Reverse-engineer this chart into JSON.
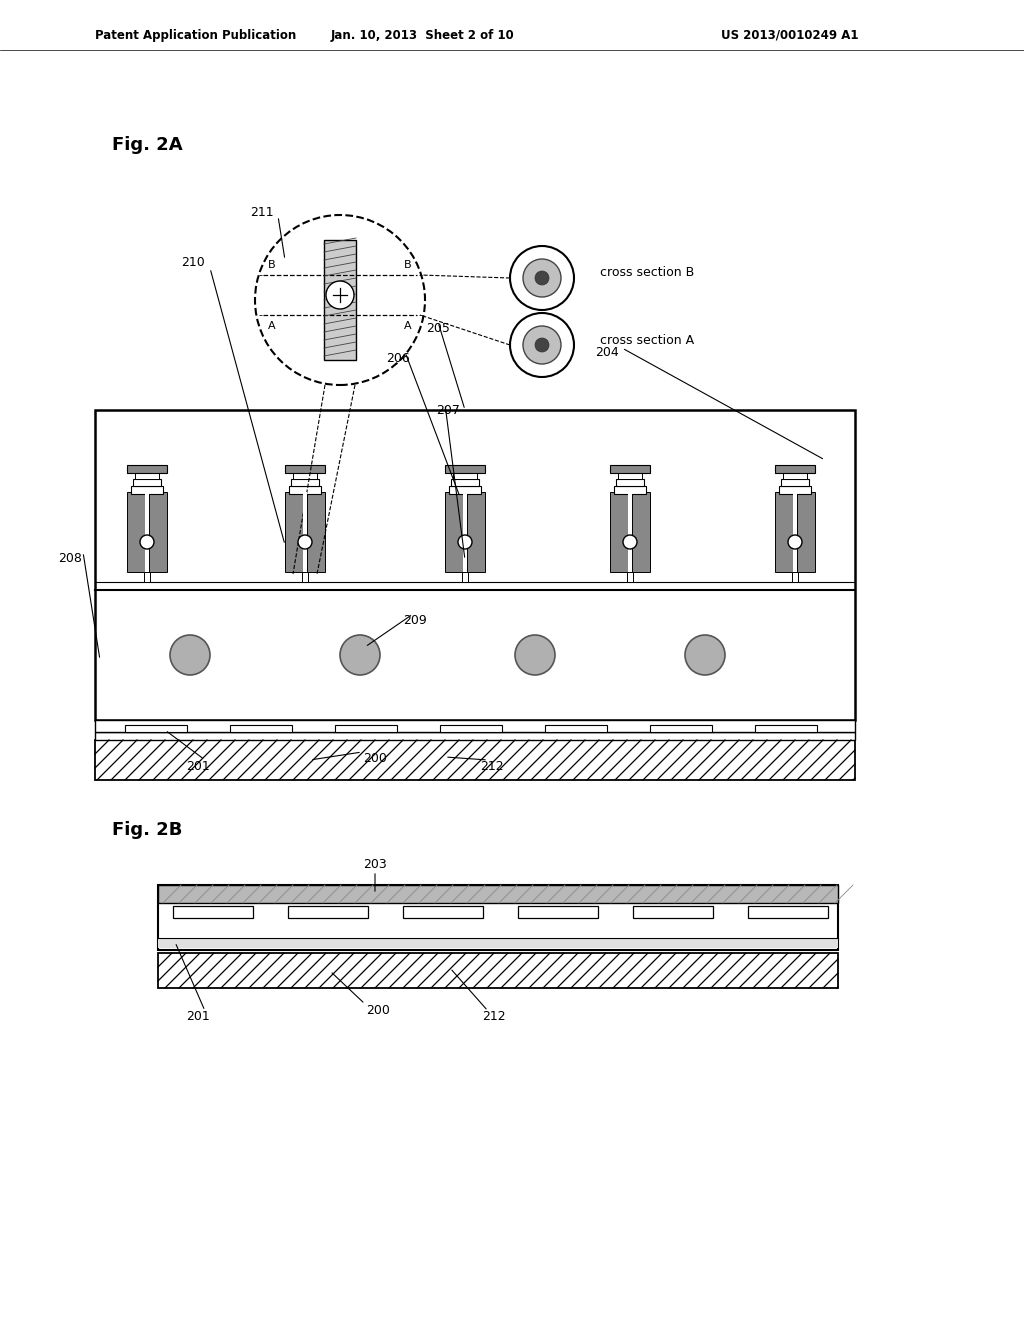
{
  "bg_color": "#ffffff",
  "header_left": "Patent Application Publication",
  "header_center": "Jan. 10, 2013  Sheet 2 of 10",
  "header_right": "US 2013/0010249 A1",
  "fig2a_label": "Fig. 2A",
  "fig2b_label": "Fig. 2B"
}
